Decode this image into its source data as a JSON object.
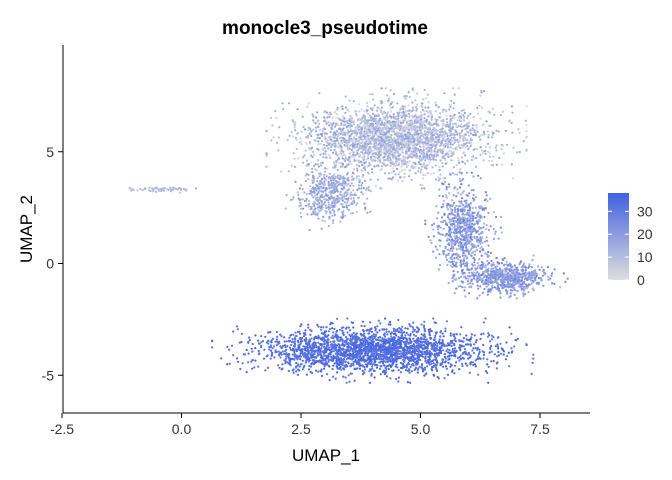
{
  "chart_data": {
    "type": "scatter",
    "title": "monocle3_pseudotime",
    "xlabel": "UMAP_1",
    "ylabel": "UMAP_2",
    "xlim": [
      -2.5,
      8.6
    ],
    "ylim": [
      -6.8,
      9.5
    ],
    "x_ticks": [
      -2.5,
      0.0,
      2.5,
      5.0,
      7.5
    ],
    "x_tick_labels": [
      "-2.5",
      "0.0",
      "2.5",
      "5.0",
      "7.5"
    ],
    "y_ticks": [
      -5,
      0,
      5
    ],
    "y_tick_labels": [
      "-5",
      "0",
      "5"
    ],
    "grid": false,
    "legend": {
      "position": "right",
      "type": "colorbar",
      "ticks": [
        0,
        10,
        20,
        30
      ],
      "tick_labels": [
        "0",
        "10",
        "20",
        "30"
      ],
      "range": [
        0,
        38
      ],
      "low_color": "#dedede",
      "high_color": "#4161e0"
    },
    "clusters": [
      {
        "region": "top lobe",
        "center": [
          4.5,
          5.6
        ],
        "spread": [
          1.7,
          1.4
        ],
        "pseudotime_range": [
          0,
          20
        ],
        "approx_points": 2600
      },
      {
        "region": "left wing of top lobe",
        "center": [
          3.1,
          3.1
        ],
        "spread": [
          0.6,
          1.0
        ],
        "pseudotime_range": [
          8,
          22
        ],
        "approx_points": 500
      },
      {
        "region": "neck",
        "center": [
          5.9,
          1.5
        ],
        "spread": [
          0.5,
          1.6
        ],
        "pseudotime_range": [
          10,
          30
        ],
        "approx_points": 700
      },
      {
        "region": "right arm",
        "center": [
          6.8,
          -0.6
        ],
        "spread": [
          0.8,
          0.6
        ],
        "pseudotime_range": [
          12,
          28
        ],
        "approx_points": 700
      },
      {
        "region": "bottom lobe",
        "center": [
          4.0,
          -3.9
        ],
        "spread": [
          2.1,
          0.9
        ],
        "pseudotime_range": [
          30,
          38
        ],
        "approx_points": 2400
      },
      {
        "region": "left streak",
        "center": [
          -0.4,
          3.3
        ],
        "spread": [
          0.6,
          0.1
        ],
        "pseudotime_range": [
          6,
          14
        ],
        "approx_points": 60
      }
    ]
  }
}
